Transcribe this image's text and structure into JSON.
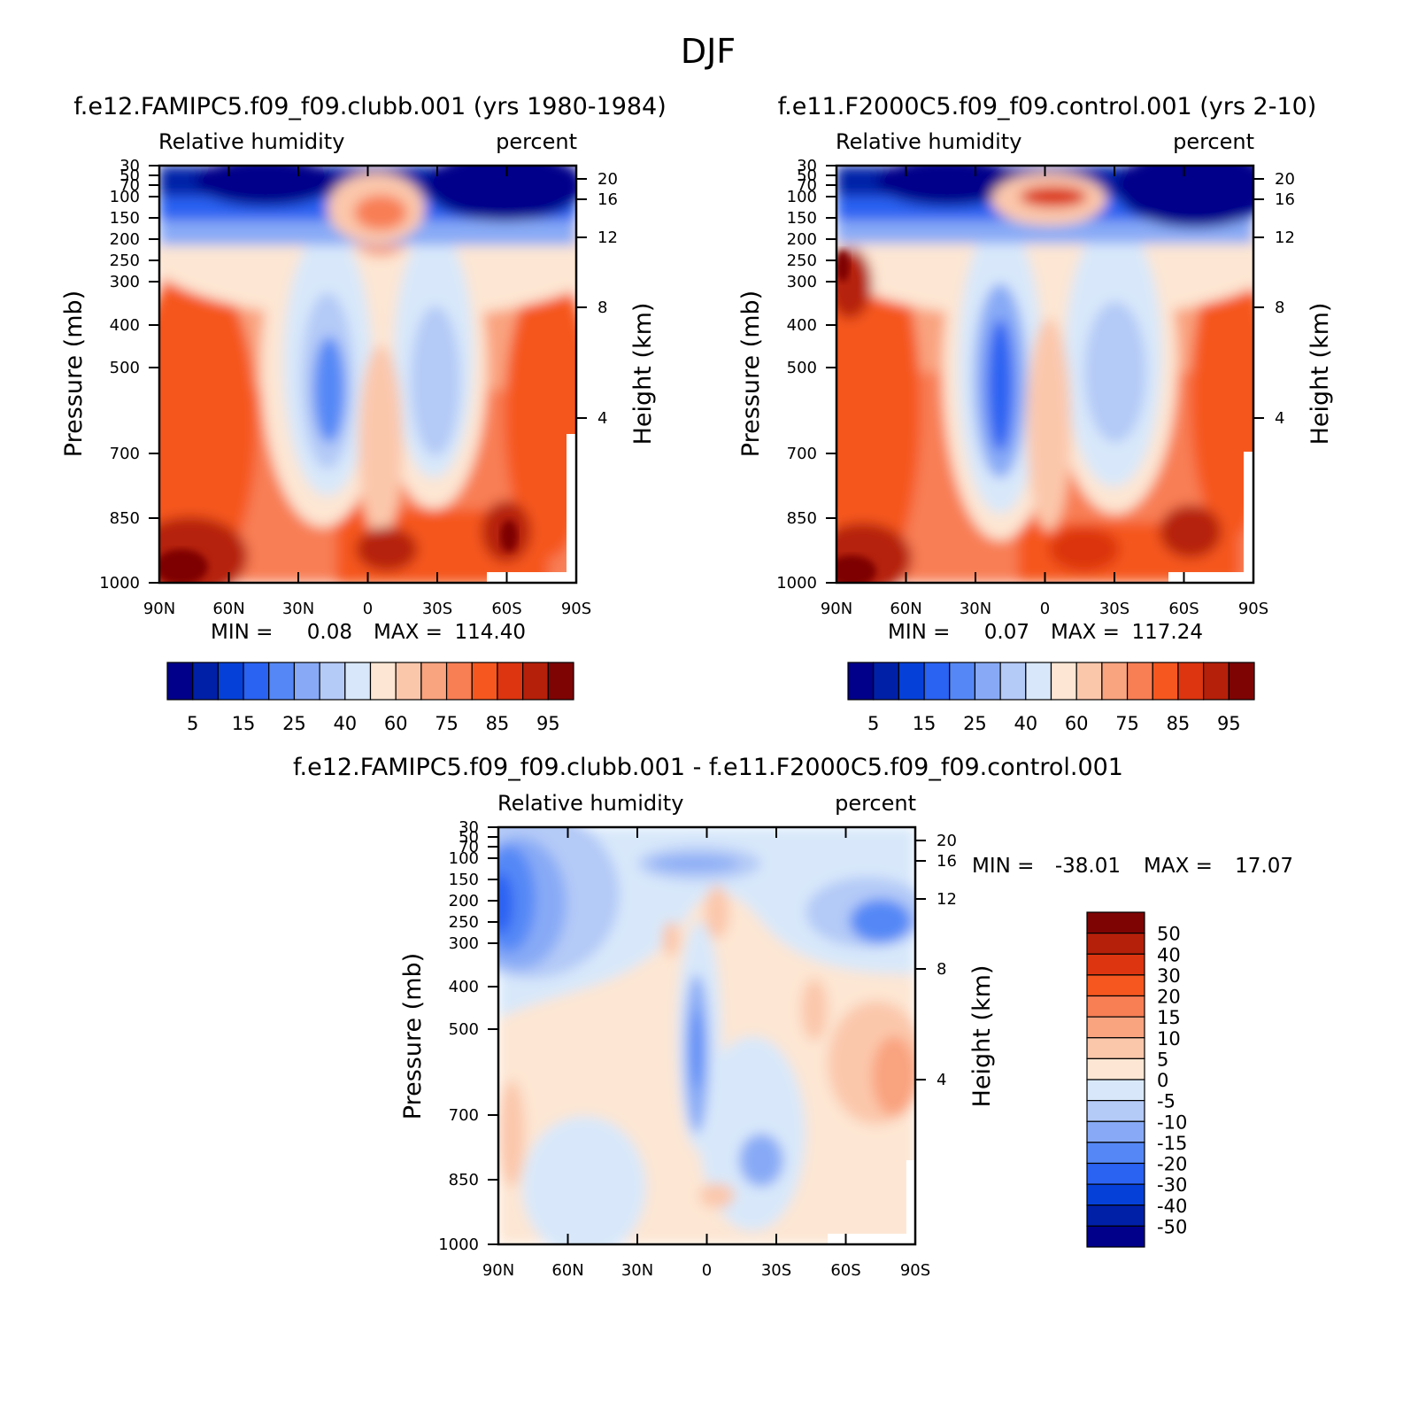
{
  "figure": {
    "title": "DJF"
  },
  "chart_data": [
    {
      "type": "heatmap",
      "title": "f.e12.FAMIPC5.f09_f09.clubb.001 (yrs 1980-1984)",
      "variable": "Relative humidity",
      "units": "percent",
      "xlabel": "",
      "ylabel": "Pressure (mb)",
      "ylabel_right": "Height (km)",
      "x_ticks": [
        "90N",
        "60N",
        "30N",
        "0",
        "30S",
        "60S",
        "90S"
      ],
      "y_ticks": [
        "30",
        "50",
        "70",
        "100",
        "150",
        "200",
        "250",
        "300",
        "400",
        "500",
        "700",
        "850",
        "1000"
      ],
      "y_right_ticks": [
        "20",
        "16",
        "12",
        "8",
        "4"
      ],
      "min_label": "MIN =",
      "min_value": "0.08",
      "max_label": "MAX =",
      "max_value": "114.40",
      "colorbar": {
        "orientation": "horizontal",
        "levels": [
          "5",
          "10",
          "15",
          "20",
          "25",
          "30",
          "40",
          "50",
          "60",
          "70",
          "75",
          "80",
          "85",
          "90",
          "95"
        ],
        "tick_labels": [
          "5",
          "15",
          "25",
          "40",
          "60",
          "75",
          "85",
          "95"
        ],
        "colors": [
          "#00008a",
          "#0020a8",
          "#0540d8",
          "#2a62f2",
          "#5588f6",
          "#88aaf6",
          "#b4caf7",
          "#d8e8fa",
          "#fde6d3",
          "#fbc7ab",
          "#f9a37f",
          "#f87e54",
          "#f5571f",
          "#dc3510",
          "#b5200a",
          "#7e0404"
        ]
      }
    },
    {
      "type": "heatmap",
      "title": "f.e11.F2000C5.f09_f09.control.001 (yrs 2-10)",
      "variable": "Relative humidity",
      "units": "percent",
      "xlabel": "",
      "ylabel": "Pressure (mb)",
      "ylabel_right": "Height (km)",
      "x_ticks": [
        "90N",
        "60N",
        "30N",
        "0",
        "30S",
        "60S",
        "90S"
      ],
      "y_ticks": [
        "30",
        "50",
        "70",
        "100",
        "150",
        "200",
        "250",
        "300",
        "400",
        "500",
        "700",
        "850",
        "1000"
      ],
      "y_right_ticks": [
        "20",
        "16",
        "12",
        "8",
        "4"
      ],
      "min_label": "MIN =",
      "min_value": "0.07",
      "max_label": "MAX =",
      "max_value": "117.24",
      "colorbar": {
        "orientation": "horizontal",
        "levels": [
          "5",
          "10",
          "15",
          "20",
          "25",
          "30",
          "40",
          "50",
          "60",
          "70",
          "75",
          "80",
          "85",
          "90",
          "95"
        ],
        "tick_labels": [
          "5",
          "15",
          "25",
          "40",
          "60",
          "75",
          "85",
          "95"
        ],
        "colors": [
          "#00008a",
          "#0020a8",
          "#0540d8",
          "#2a62f2",
          "#5588f6",
          "#88aaf6",
          "#b4caf7",
          "#d8e8fa",
          "#fde6d3",
          "#fbc7ab",
          "#f9a37f",
          "#f87e54",
          "#f5571f",
          "#dc3510",
          "#b5200a",
          "#7e0404"
        ]
      }
    },
    {
      "type": "heatmap",
      "title": "f.e12.FAMIPC5.f09_f09.clubb.001 - f.e11.F2000C5.f09_f09.control.001",
      "variable": "Relative humidity",
      "units": "percent",
      "xlabel": "",
      "ylabel": "Pressure (mb)",
      "ylabel_right": "Height (km)",
      "x_ticks": [
        "90N",
        "60N",
        "30N",
        "0",
        "30S",
        "60S",
        "90S"
      ],
      "y_ticks": [
        "30",
        "50",
        "70",
        "100",
        "150",
        "200",
        "250",
        "300",
        "400",
        "500",
        "700",
        "850",
        "1000"
      ],
      "y_right_ticks": [
        "20",
        "16",
        "12",
        "8",
        "4"
      ],
      "min_label": "MIN =",
      "min_value": "-38.01",
      "max_label": "MAX =",
      "max_value": "17.07",
      "colorbar": {
        "orientation": "vertical",
        "levels": [
          "50",
          "40",
          "30",
          "20",
          "15",
          "10",
          "5",
          "0",
          "-5",
          "-10",
          "-15",
          "-20",
          "-30",
          "-40",
          "-50"
        ],
        "colors": [
          "#7e0404",
          "#b5200a",
          "#dc3510",
          "#f5571f",
          "#f87e54",
          "#f9a37f",
          "#fbc7ab",
          "#fde6d3",
          "#d8e8fa",
          "#b4caf7",
          "#88aaf6",
          "#5588f6",
          "#2a62f2",
          "#0540d8",
          "#0020a8",
          "#00008a"
        ]
      }
    }
  ]
}
